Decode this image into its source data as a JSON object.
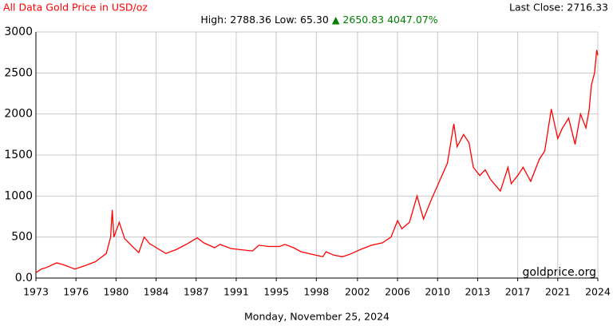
{
  "chart_data": {
    "type": "line",
    "title": "All Data Gold Price in USD/oz",
    "stats": {
      "high": "High: 2788.36",
      "low": "Low: 65.30",
      "change": "▲ 2650.83 4047.07%"
    },
    "last_close": "Last Close: 2716.33",
    "date": "Monday, November 25, 2024",
    "watermark": "goldprice.org",
    "color": "#ff0000",
    "grid": true,
    "xlim": [
      1973,
      2024.9
    ],
    "xticks": [
      {
        "value": 1973,
        "label": "1973"
      },
      {
        "value": 1976.7,
        "label": "1976"
      },
      {
        "value": 1980.4,
        "label": "1980"
      },
      {
        "value": 1984.1,
        "label": "1984"
      },
      {
        "value": 1987.8,
        "label": "1987"
      },
      {
        "value": 1991.5,
        "label": "1991"
      },
      {
        "value": 1995.2,
        "label": "1995"
      },
      {
        "value": 1998.9,
        "label": "1998"
      },
      {
        "value": 2002.7,
        "label": "2002"
      },
      {
        "value": 2006.4,
        "label": "2006"
      },
      {
        "value": 2010.1,
        "label": "2010"
      },
      {
        "value": 2013.8,
        "label": "2013"
      },
      {
        "value": 2017.5,
        "label": "2017"
      },
      {
        "value": 2021.2,
        "label": "2021"
      },
      {
        "value": 2024.9,
        "label": "2024"
      }
    ],
    "ylim": [
      0,
      3000
    ],
    "yticks": [
      {
        "value": 0,
        "label": "0.0"
      },
      500,
      1000,
      1500,
      2000,
      2500,
      3000
    ],
    "x": [
      1973.0,
      1973.5,
      1974.0,
      1974.9,
      1975.5,
      1976.6,
      1977.5,
      1978.5,
      1979.5,
      1979.9,
      1980.05,
      1980.2,
      1980.7,
      1981.2,
      1981.8,
      1982.5,
      1983.0,
      1983.5,
      1984.0,
      1985.0,
      1986.0,
      1987.0,
      1987.9,
      1988.5,
      1989.5,
      1990.0,
      1991.0,
      1992.0,
      1993.0,
      1993.6,
      1994.5,
      1995.5,
      1996.0,
      1996.8,
      1997.5,
      1998.5,
      1999.5,
      1999.8,
      2000.5,
      2001.3,
      2002.0,
      2003.0,
      2004.0,
      2005.0,
      2005.8,
      2006.4,
      2006.8,
      2007.5,
      2008.2,
      2008.8,
      2009.5,
      2010.0,
      2010.5,
      2011.0,
      2011.6,
      2011.9,
      2012.5,
      2013.0,
      2013.4,
      2014.0,
      2014.5,
      2015.0,
      2015.9,
      2016.6,
      2016.9,
      2017.5,
      2018.0,
      2018.7,
      2019.5,
      2020.0,
      2020.6,
      2021.2,
      2021.6,
      2022.2,
      2022.8,
      2023.3,
      2023.8,
      2024.1,
      2024.3,
      2024.6,
      2024.8,
      2024.9
    ],
    "values": [
      65,
      110,
      130,
      185,
      165,
      110,
      150,
      200,
      300,
      500,
      830,
      500,
      680,
      480,
      400,
      310,
      500,
      420,
      380,
      300,
      350,
      420,
      490,
      430,
      370,
      410,
      360,
      345,
      330,
      400,
      385,
      385,
      410,
      370,
      320,
      290,
      260,
      320,
      280,
      260,
      290,
      350,
      400,
      430,
      500,
      700,
      600,
      680,
      1000,
      720,
      950,
      1100,
      1250,
      1400,
      1880,
      1600,
      1750,
      1650,
      1350,
      1250,
      1320,
      1200,
      1060,
      1350,
      1150,
      1250,
      1350,
      1180,
      1450,
      1550,
      2060,
      1700,
      1820,
      1950,
      1630,
      2000,
      1830,
      2050,
      2350,
      2500,
      2780,
      2716
    ]
  }
}
